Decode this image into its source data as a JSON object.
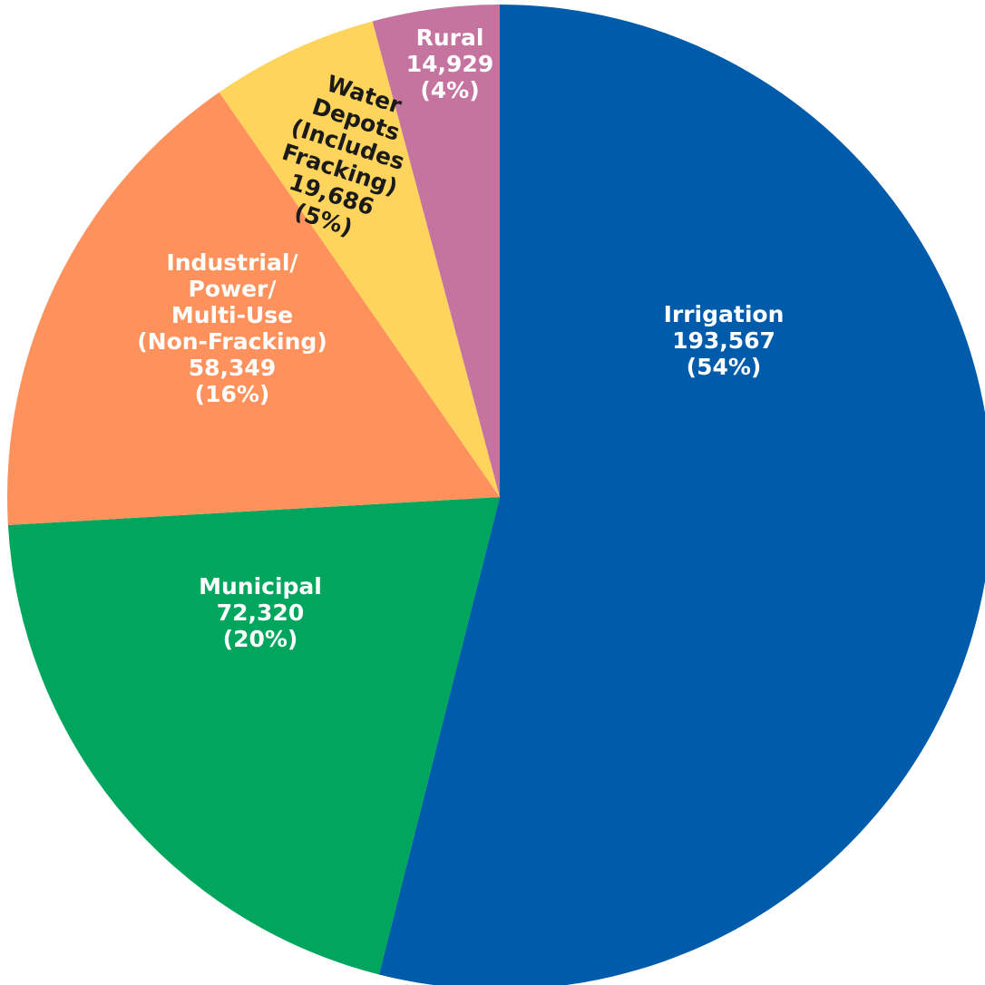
{
  "chart_data": {
    "type": "pie",
    "slices": [
      {
        "name": "Irrigation",
        "value": 193567,
        "label_lines": [
          "Irrigation",
          "193,567",
          "(54%)"
        ],
        "color": "#005BAA",
        "text_color": "light"
      },
      {
        "name": "Municipal",
        "value": 72320,
        "label_lines": [
          "Municipal",
          "72,320",
          "(20%)"
        ],
        "color": "#00A65D",
        "text_color": "light"
      },
      {
        "name": "Industrial/Power/Multi-Use (Non-Fracking)",
        "value": 58349,
        "label_lines": [
          "Industrial/",
          "Power/",
          "Multi-Use",
          "(Non-Fracking)",
          "58,349",
          "(16%)"
        ],
        "color": "#FF925C",
        "text_color": "light"
      },
      {
        "name": "Water Depots (Includes Fracking)",
        "value": 19686,
        "label_lines": [
          "Water",
          "Depots",
          "(Includes",
          "Fracking)",
          "19,686",
          "(5%)"
        ],
        "color": "#FFD45C",
        "text_color": "dark"
      },
      {
        "name": "Rural",
        "value": 14929,
        "label_lines": [
          "Rural",
          "14,929",
          "(4%)"
        ],
        "color": "#C5739F",
        "text_color": "light"
      }
    ]
  }
}
